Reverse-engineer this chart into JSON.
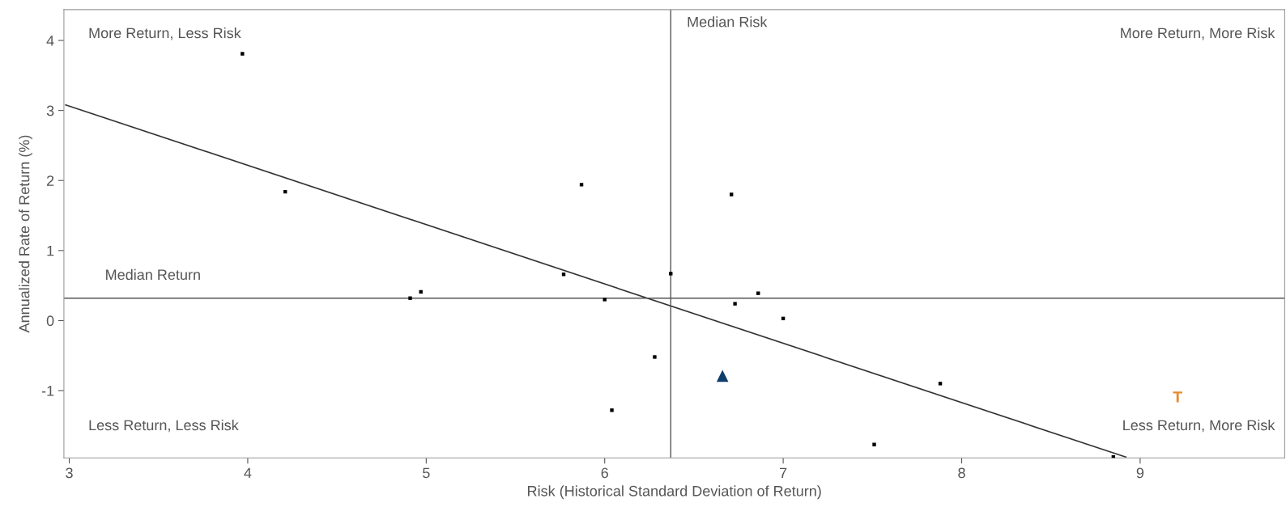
{
  "chart_data": {
    "type": "scatter",
    "xlabel": "Risk (Historical Standard Deviation of Return)",
    "ylabel": "Annualized Rate of Return (%)",
    "xlim": [
      2.97,
      9.81
    ],
    "ylim": [
      -1.96,
      4.44
    ],
    "xticks": [
      3,
      4,
      5,
      6,
      7,
      8,
      9
    ],
    "yticks": [
      -1,
      0,
      1,
      2,
      3,
      4
    ],
    "grid": false,
    "legend": false,
    "series": [
      {
        "type": "scatter",
        "marker": "square",
        "color": "#000000",
        "x": [
          3.97,
          4.21,
          5.87,
          6.71,
          4.91,
          4.97,
          5.77,
          6.0,
          6.04,
          6.37,
          6.28,
          6.73,
          6.86,
          7.0,
          7.88,
          7.51,
          8.85
        ],
        "values": [
          3.81,
          1.84,
          1.94,
          1.8,
          0.32,
          0.41,
          0.66,
          0.3,
          -1.28,
          0.67,
          -0.52,
          0.24,
          0.39,
          0.03,
          -0.9,
          -1.77,
          -1.95
        ]
      },
      {
        "type": "scatter",
        "marker": "triangle",
        "color": "#0d3d6b",
        "x": [
          6.66
        ],
        "values": [
          -0.79
        ]
      },
      {
        "marker": "square",
        "color": "#e8892b",
        "x": [
          9.21
        ],
        "values": [
          -1.11
        ],
        "value_labels": [
          "T"
        ]
      },
      {
        "type": "line",
        "line_style": "solid",
        "color": "#333333",
        "x": [
          2.98,
          8.92
        ],
        "values": [
          3.08,
          -1.95
        ]
      }
    ],
    "ref_lines": [
      {
        "axis": "x",
        "value": 6.37,
        "label": "Median Risk",
        "color": "#555555"
      },
      {
        "axis": "y",
        "value": 0.32,
        "label": "Median Return",
        "color": "#555555"
      }
    ],
    "annotations": [
      "More Return, Less Risk",
      "More Return, More Risk",
      "Less Return, Less Risk",
      "Less Return, More Risk"
    ]
  }
}
